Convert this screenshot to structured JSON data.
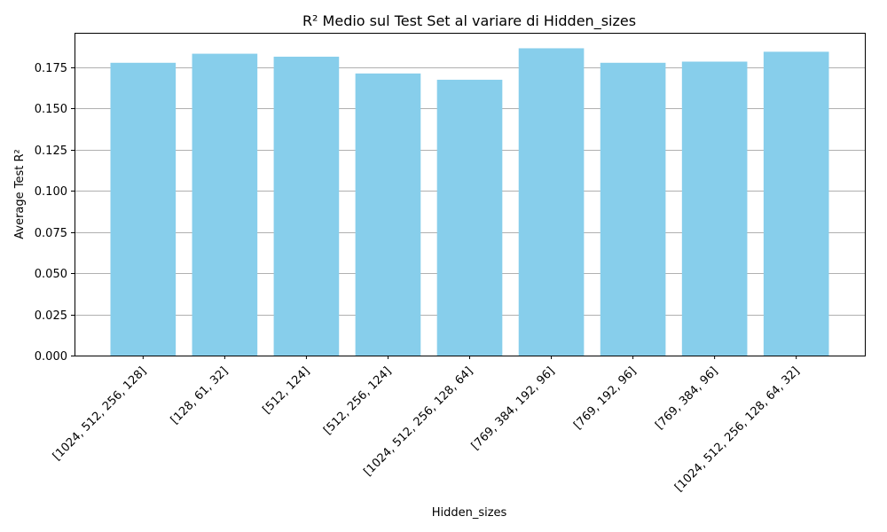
{
  "chart_data": {
    "type": "bar",
    "title": "R² Medio sul Test Set al variare di Hidden_sizes",
    "xlabel": "Hidden_sizes",
    "ylabel": "Average Test R²",
    "categories": [
      "[1024, 512, 256, 128]",
      "[128, 61, 32]",
      "[512, 124]",
      "[512, 256, 124]",
      "[1024, 512, 256, 128, 64]",
      "[769, 384, 192, 96]",
      "[769, 192, 96]",
      "[769, 384, 96]",
      "[1024, 512, 256, 128, 64, 32]"
    ],
    "values": [
      0.1778,
      0.1833,
      0.1815,
      0.1713,
      0.1675,
      0.1866,
      0.1778,
      0.1785,
      0.1845
    ],
    "ylim": [
      0,
      0.196
    ],
    "yticks": [
      0.0,
      0.025,
      0.05,
      0.075,
      0.1,
      0.125,
      0.15,
      0.175
    ],
    "ytick_labels": [
      "0.000",
      "0.025",
      "0.050",
      "0.075",
      "0.100",
      "0.125",
      "0.150",
      "0.175"
    ],
    "grid": "y-major",
    "bar_color": "#87CEEB",
    "grid_color": "#b0b0b0"
  }
}
